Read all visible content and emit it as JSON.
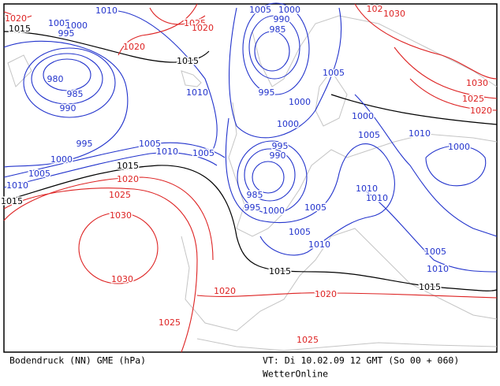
{
  "footer": {
    "product": "Bodendruck (NN) GME (hPa)",
    "valid_time": "VT: Di 10.02.09 12 GMT (So 00 + 060)",
    "credit": "WetterOnline"
  },
  "isobar_labels": [
    "1010",
    "1005",
    "1000",
    "995",
    "1015",
    "1020",
    "1025",
    "1020",
    "1020",
    "1015",
    "980",
    "985",
    "990",
    "995",
    "1000",
    "1005",
    "1010",
    "1015",
    "1005",
    "1010",
    "1005",
    "1015",
    "1020",
    "1025",
    "1030",
    "1030",
    "1010",
    "1005",
    "1000",
    "990",
    "985",
    "995",
    "1000",
    "1000",
    "1005",
    "1000",
    "1005",
    "995",
    "990",
    "985",
    "995",
    "1000",
    "1005",
    "1005",
    "1010",
    "1015",
    "1010",
    "1010",
    "1010",
    "1000",
    "1005",
    "1010",
    "1015",
    "1020",
    "1020",
    "1025",
    "1025",
    "1030",
    "1030",
    "1025",
    "1020",
    "102"
  ]
}
